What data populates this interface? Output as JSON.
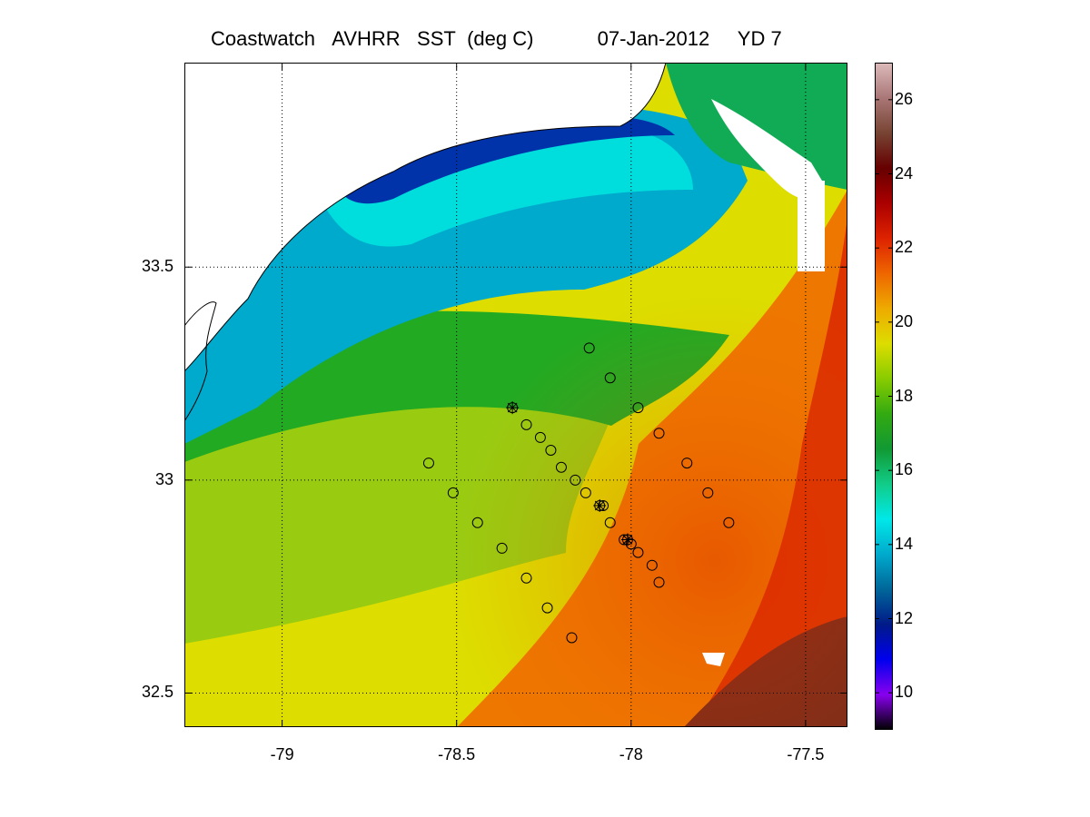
{
  "title": {
    "part1": "Coastwatch",
    "part2": "AVHRR",
    "part3": "SST",
    "part4": "(deg C)",
    "date": "07-Jan-2012",
    "yearday": "YD 7"
  },
  "map": {
    "lon_range": [
      -79.28,
      -77.38
    ],
    "lat_range": [
      32.42,
      33.98
    ],
    "x_ticks": [
      "-79",
      "-78.5",
      "-78",
      "-77.5"
    ],
    "x_tick_values": [
      -79,
      -78.5,
      -78,
      -77.5
    ],
    "y_ticks": [
      "33.5",
      "33",
      "32.5"
    ],
    "y_tick_values": [
      33.5,
      33,
      32.5
    ],
    "grid": "dotted"
  },
  "colorbar": {
    "range": [
      9,
      27
    ],
    "tick_labels": [
      "26",
      "24",
      "22",
      "20",
      "18",
      "16",
      "14",
      "12",
      "10"
    ],
    "tick_values": [
      26,
      24,
      22,
      20,
      18,
      16,
      14,
      12,
      10
    ],
    "colors": [
      "#000000",
      "#8800ee",
      "#0000ee",
      "#001a88",
      "#006699",
      "#00aacc",
      "#00e8e8",
      "#11cc88",
      "#119933",
      "#33aa11",
      "#88cc00",
      "#dddd00",
      "#eeaa00",
      "#ee6600",
      "#dd2200",
      "#aa0000",
      "#660000",
      "#774433",
      "#aa7777",
      "#ddbbbb"
    ]
  },
  "stations": {
    "circles": [
      [
        -78.12,
        33.31
      ],
      [
        -78.06,
        33.24
      ],
      [
        -77.98,
        33.17
      ],
      [
        -77.92,
        33.11
      ],
      [
        -77.84,
        33.04
      ],
      [
        -77.78,
        32.97
      ],
      [
        -77.72,
        32.9
      ],
      [
        -78.3,
        33.13
      ],
      [
        -78.26,
        33.1
      ],
      [
        -78.23,
        33.07
      ],
      [
        -78.2,
        33.03
      ],
      [
        -78.16,
        33.0
      ],
      [
        -78.13,
        32.97
      ],
      [
        -78.08,
        32.94
      ],
      [
        -78.06,
        32.9
      ],
      [
        -78.02,
        32.86
      ],
      [
        -78.0,
        32.85
      ],
      [
        -77.98,
        32.83
      ],
      [
        -77.94,
        32.8
      ],
      [
        -77.92,
        32.76
      ],
      [
        -78.58,
        33.04
      ],
      [
        -78.51,
        32.97
      ],
      [
        -78.44,
        32.9
      ],
      [
        -78.37,
        32.84
      ],
      [
        -78.3,
        32.77
      ],
      [
        -78.24,
        32.7
      ],
      [
        -78.17,
        32.63
      ]
    ],
    "stars": [
      [
        -78.34,
        33.17
      ],
      [
        -78.09,
        32.94
      ],
      [
        -78.01,
        32.86
      ]
    ]
  }
}
